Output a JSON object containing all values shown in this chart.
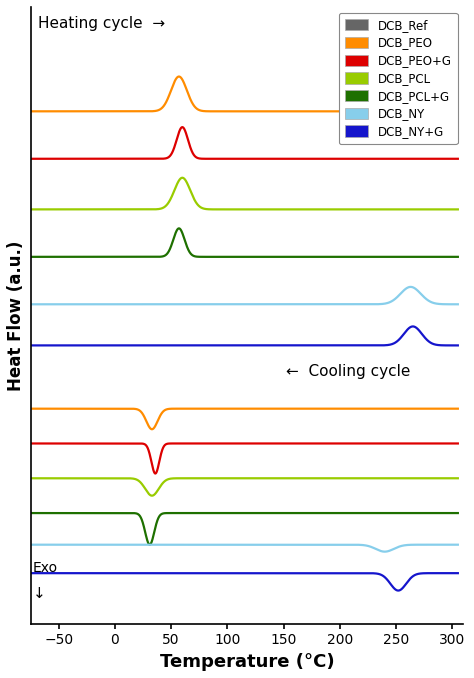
{
  "xlabel": "Temperature (°C)",
  "ylabel": "Heat Flow (a.u.)",
  "xlim": [
    -75,
    310
  ],
  "x_ticks": [
    -50,
    0,
    50,
    100,
    150,
    200,
    250,
    300
  ],
  "legend_labels": [
    "DCB_Ref",
    "DCB_PEO",
    "DCB_PEO+G",
    "DCB_PCL",
    "DCB_PCL+G",
    "DCB_NY",
    "DCB_NY+G"
  ],
  "legend_colors": [
    "#666666",
    "#FF8C00",
    "#DD0000",
    "#99CC00",
    "#1E7000",
    "#87CEEB",
    "#1515CC"
  ],
  "heating_label": "Heating cycle  →",
  "cooling_label": "←  Cooling cycle",
  "exo_label": "Exo\n↓",
  "background_color": "#ffffff",
  "heating_offsets": [
    12.5,
    11.2,
    9.7,
    8.1,
    6.6,
    5.1,
    3.8
  ],
  "cooling_offsets": [
    2.8,
    1.8,
    0.7,
    -0.4,
    -1.5,
    -2.5,
    -3.4
  ],
  "h_peaks": {
    "peo": [
      [
        57,
        7,
        1.1
      ]
    ],
    "peog": [
      [
        60,
        5,
        1.0
      ]
    ],
    "pcl": [
      [
        60,
        7,
        1.0
      ]
    ],
    "pclg": [
      [
        57,
        5,
        0.9
      ]
    ],
    "ny": [
      [
        263,
        9,
        0.55
      ]
    ],
    "nyg": [
      [
        265,
        8,
        0.6
      ]
    ]
  },
  "c_peaks": {
    "peo": [
      [
        33,
        5,
        -0.65
      ]
    ],
    "peog": [
      [
        36,
        3.5,
        -0.95
      ]
    ],
    "pcl": [
      [
        33,
        6,
        -0.55
      ]
    ],
    "pclg": [
      [
        31,
        4,
        -1.0
      ]
    ],
    "ny": [
      [
        240,
        8,
        -0.22
      ]
    ],
    "nyg": [
      [
        252,
        7,
        -0.55
      ]
    ]
  }
}
